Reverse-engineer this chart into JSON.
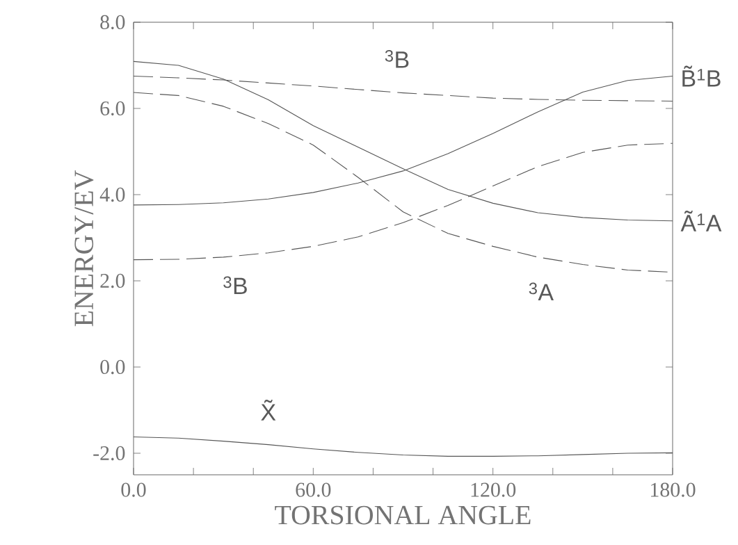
{
  "chart_data": {
    "type": "line",
    "xlabel": "TORSIONAL ANGLE",
    "ylabel": "ENERGY/EV",
    "x": [
      0,
      15,
      30,
      45,
      60,
      75,
      90,
      105,
      120,
      135,
      150,
      165,
      180
    ],
    "xlim": [
      0,
      180
    ],
    "ylim": [
      -2.5,
      8.0
    ],
    "xticks": [
      {
        "value": 0,
        "label": "0.0"
      },
      {
        "value": 20,
        "label": null
      },
      {
        "value": 40,
        "label": null
      },
      {
        "value": 60,
        "label": "60.0"
      },
      {
        "value": 80,
        "label": null
      },
      {
        "value": 100,
        "label": null
      },
      {
        "value": 120,
        "label": "120.0"
      },
      {
        "value": 140,
        "label": null
      },
      {
        "value": 160,
        "label": null
      },
      {
        "value": 180,
        "label": "180.0"
      }
    ],
    "yticks": [
      {
        "value": -2.0,
        "label": "-2.0"
      },
      {
        "value": 0.0,
        "label": "0.0"
      },
      {
        "value": 2.0,
        "label": "2.0"
      },
      {
        "value": 4.0,
        "label": "4.0"
      },
      {
        "value": 6.0,
        "label": "6.0"
      },
      {
        "value": 8.0,
        "label": "8.0"
      }
    ],
    "grid": false,
    "marker": "none",
    "series": [
      {
        "color": "#555555",
        "line_style": "solid",
        "values": [
          7.09,
          7.0,
          6.68,
          6.2,
          5.6,
          5.1,
          4.6,
          4.12,
          3.8,
          3.58,
          3.47,
          3.41,
          3.39
        ]
      },
      {
        "color": "#555555",
        "line_style": "solid",
        "values": [
          3.76,
          3.77,
          3.81,
          3.9,
          4.05,
          4.27,
          4.55,
          4.95,
          5.42,
          5.92,
          6.38,
          6.65,
          6.75
        ]
      },
      {
        "color": "#555555",
        "line_style": "dashed",
        "values": [
          6.75,
          6.71,
          6.66,
          6.59,
          6.52,
          6.44,
          6.36,
          6.3,
          6.24,
          6.21,
          6.19,
          6.18,
          6.17
        ]
      },
      {
        "color": "#555555",
        "line_style": "dashed",
        "values": [
          6.37,
          6.3,
          6.05,
          5.65,
          5.15,
          4.4,
          3.6,
          3.1,
          2.8,
          2.55,
          2.38,
          2.25,
          2.2
        ]
      },
      {
        "color": "#555555",
        "line_style": "dashed",
        "values": [
          2.49,
          2.5,
          2.55,
          2.65,
          2.8,
          3.02,
          3.35,
          3.75,
          4.2,
          4.65,
          4.98,
          5.15,
          5.19
        ]
      },
      {
        "color": "#555555",
        "line_style": "solid",
        "values": [
          -1.62,
          -1.65,
          -1.72,
          -1.8,
          -1.9,
          -1.98,
          -2.04,
          -2.07,
          -2.07,
          -2.06,
          -2.03,
          -2.0,
          -1.99
        ]
      }
    ],
    "annotations": [
      "$^{3}$B",
      "$^{3}$B",
      "$^{3}$A",
      "X̃",
      {
        "text": "B̃$^{1}$B",
        "x": 180,
        "y": 6.75
      },
      {
        "text": "Ã$^{1}$A",
        "x": 180,
        "y": 3.39
      }
    ]
  }
}
